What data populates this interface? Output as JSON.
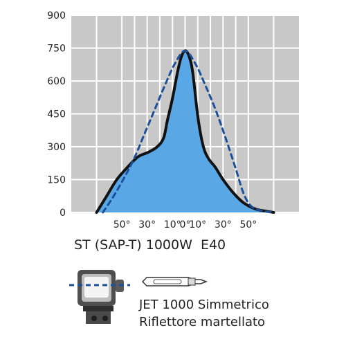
{
  "chart_data": {
    "type": "line",
    "ylim": [
      0,
      900
    ],
    "xlim": [
      -90,
      90
    ],
    "y_ticks": [
      0,
      150,
      300,
      450,
      600,
      750,
      900
    ],
    "x_ticks": [
      {
        "value": -50,
        "label": "50°"
      },
      {
        "value": -30,
        "label": "30°"
      },
      {
        "value": -10,
        "label": "10°"
      },
      {
        "value": 0,
        "label": "0°"
      },
      {
        "value": 10,
        "label": "10°"
      },
      {
        "value": 30,
        "label": "30°"
      },
      {
        "value": 50,
        "label": "50°"
      }
    ],
    "grid": true,
    "series": [
      {
        "style": "solid",
        "fill": true,
        "color": "#111111",
        "fill_color": "#5aa7e6",
        "points": [
          [
            -70,
            0
          ],
          [
            -62,
            75
          ],
          [
            -54,
            150
          ],
          [
            -45,
            210
          ],
          [
            -37,
            255
          ],
          [
            -29,
            275
          ],
          [
            -22,
            300
          ],
          [
            -17,
            340
          ],
          [
            -14,
            420
          ],
          [
            -10,
            520
          ],
          [
            -6,
            640
          ],
          [
            -3,
            710
          ],
          [
            0,
            738
          ],
          [
            3,
            715
          ],
          [
            6,
            640
          ],
          [
            10,
            440
          ],
          [
            14,
            310
          ],
          [
            18,
            250
          ],
          [
            24,
            205
          ],
          [
            30,
            150
          ],
          [
            38,
            90
          ],
          [
            46,
            45
          ],
          [
            56,
            15
          ],
          [
            65,
            5
          ],
          [
            70,
            0
          ]
        ]
      },
      {
        "style": "dashed",
        "fill": false,
        "color": "#1a4f9c",
        "points": [
          [
            -65,
            0
          ],
          [
            -57,
            70
          ],
          [
            -48,
            160
          ],
          [
            -40,
            250
          ],
          [
            -32,
            360
          ],
          [
            -24,
            470
          ],
          [
            -16,
            580
          ],
          [
            -8,
            680
          ],
          [
            0,
            738
          ],
          [
            8,
            680
          ],
          [
            16,
            580
          ],
          [
            24,
            470
          ],
          [
            32,
            340
          ],
          [
            40,
            200
          ],
          [
            46,
            90
          ],
          [
            52,
            30
          ],
          [
            60,
            8
          ],
          [
            70,
            0
          ]
        ]
      }
    ]
  },
  "caption": {
    "title": "ST (SAP-T) 1000W  E40",
    "fixture_line1": "JET 1000 Simmetrico",
    "fixture_line2": "Riflettore martellato"
  },
  "colors": {
    "plot_background": "#c8c8c8",
    "grid": "#ffffff"
  },
  "icons": {
    "fixture": "luminaire-icon",
    "lamp": "lamp-bulb-icon"
  }
}
